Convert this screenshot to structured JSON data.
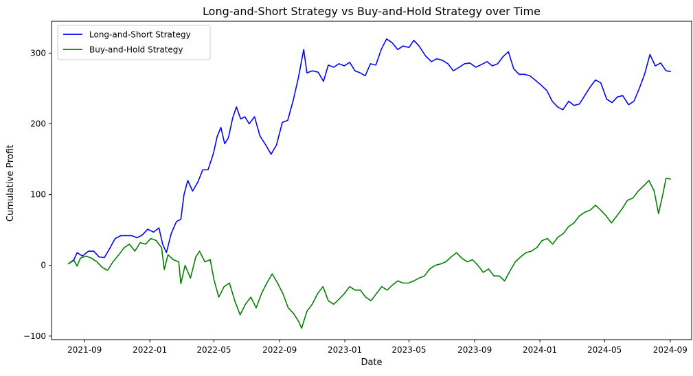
{
  "chart_data": {
    "type": "line",
    "title": "Long-and-Short Strategy vs Buy-and-Hold Strategy over Time",
    "xlabel": "Date",
    "ylabel": "Cumulative Profit",
    "xlim": [
      "2021-07-01",
      "2024-10-11"
    ],
    "ylim": [
      -105,
      345
    ],
    "x_ticks": [
      "2021-09",
      "2022-01",
      "2022-05",
      "2022-09",
      "2023-01",
      "2023-05",
      "2023-09",
      "2024-01",
      "2024-05",
      "2024-09"
    ],
    "y_ticks": [
      -100,
      0,
      100,
      200,
      300
    ],
    "grid": false,
    "legend_position": "upper left",
    "series": [
      {
        "name": "Long-and-Short Strategy",
        "color": "#0000ff",
        "points": [
          [
            "2021-08-01",
            2
          ],
          [
            "2021-08-12",
            8
          ],
          [
            "2021-08-18",
            18
          ],
          [
            "2021-08-28",
            13
          ],
          [
            "2021-09-08",
            20
          ],
          [
            "2021-09-18",
            20
          ],
          [
            "2021-09-28",
            12
          ],
          [
            "2021-10-08",
            11
          ],
          [
            "2021-10-18",
            24
          ],
          [
            "2021-10-28",
            38
          ],
          [
            "2021-11-08",
            42
          ],
          [
            "2021-11-18",
            42
          ],
          [
            "2021-11-28",
            42
          ],
          [
            "2021-12-08",
            39
          ],
          [
            "2021-12-18",
            43
          ],
          [
            "2021-12-28",
            51
          ],
          [
            "2022-01-08",
            47
          ],
          [
            "2022-01-18",
            53
          ],
          [
            "2022-01-25",
            30
          ],
          [
            "2022-02-01",
            18
          ],
          [
            "2022-02-10",
            45
          ],
          [
            "2022-02-20",
            62
          ],
          [
            "2022-02-28",
            65
          ],
          [
            "2022-03-06",
            100
          ],
          [
            "2022-03-13",
            120
          ],
          [
            "2022-03-22",
            105
          ],
          [
            "2022-04-01",
            118
          ],
          [
            "2022-04-10",
            135
          ],
          [
            "2022-04-20",
            135
          ],
          [
            "2022-04-30",
            158
          ],
          [
            "2022-05-07",
            182
          ],
          [
            "2022-05-14",
            195
          ],
          [
            "2022-05-21",
            172
          ],
          [
            "2022-05-28",
            180
          ],
          [
            "2022-06-05",
            208
          ],
          [
            "2022-06-12",
            224
          ],
          [
            "2022-06-20",
            207
          ],
          [
            "2022-06-28",
            210
          ],
          [
            "2022-07-06",
            200
          ],
          [
            "2022-07-16",
            210
          ],
          [
            "2022-07-26",
            183
          ],
          [
            "2022-08-06",
            170
          ],
          [
            "2022-08-16",
            157
          ],
          [
            "2022-08-26",
            170
          ],
          [
            "2022-09-06",
            202
          ],
          [
            "2022-09-16",
            205
          ],
          [
            "2022-09-26",
            232
          ],
          [
            "2022-10-06",
            265
          ],
          [
            "2022-10-16",
            305
          ],
          [
            "2022-10-22",
            272
          ],
          [
            "2022-11-01",
            275
          ],
          [
            "2022-11-12",
            273
          ],
          [
            "2022-11-22",
            260
          ],
          [
            "2022-12-01",
            283
          ],
          [
            "2022-12-11",
            280
          ],
          [
            "2022-12-21",
            285
          ],
          [
            "2022-12-31",
            282
          ],
          [
            "2023-01-10",
            287
          ],
          [
            "2023-01-20",
            275
          ],
          [
            "2023-01-30",
            272
          ],
          [
            "2023-02-08",
            268
          ],
          [
            "2023-02-18",
            285
          ],
          [
            "2023-02-28",
            283
          ],
          [
            "2023-03-10",
            305
          ],
          [
            "2023-03-20",
            320
          ],
          [
            "2023-03-30",
            315
          ],
          [
            "2023-04-10",
            305
          ],
          [
            "2023-04-20",
            310
          ],
          [
            "2023-05-01",
            308
          ],
          [
            "2023-05-10",
            318
          ],
          [
            "2023-05-20",
            310
          ],
          [
            "2023-06-01",
            296
          ],
          [
            "2023-06-12",
            288
          ],
          [
            "2023-06-22",
            292
          ],
          [
            "2023-07-02",
            290
          ],
          [
            "2023-07-13",
            285
          ],
          [
            "2023-07-23",
            275
          ],
          [
            "2023-08-03",
            280
          ],
          [
            "2023-08-13",
            285
          ],
          [
            "2023-08-23",
            286
          ],
          [
            "2023-09-03",
            280
          ],
          [
            "2023-09-14",
            284
          ],
          [
            "2023-09-24",
            288
          ],
          [
            "2023-10-04",
            282
          ],
          [
            "2023-10-14",
            285
          ],
          [
            "2023-10-24",
            295
          ],
          [
            "2023-11-03",
            302
          ],
          [
            "2023-11-13",
            278
          ],
          [
            "2023-11-23",
            270
          ],
          [
            "2023-12-03",
            270
          ],
          [
            "2023-12-13",
            268
          ],
          [
            "2023-12-23",
            262
          ],
          [
            "2024-01-03",
            255
          ],
          [
            "2024-01-14",
            247
          ],
          [
            "2024-01-24",
            232
          ],
          [
            "2024-02-03",
            224
          ],
          [
            "2024-02-13",
            220
          ],
          [
            "2024-02-24",
            232
          ],
          [
            "2024-03-05",
            226
          ],
          [
            "2024-03-15",
            228
          ],
          [
            "2024-03-25",
            240
          ],
          [
            "2024-04-04",
            252
          ],
          [
            "2024-04-14",
            262
          ],
          [
            "2024-04-24",
            258
          ],
          [
            "2024-05-05",
            235
          ],
          [
            "2024-05-15",
            230
          ],
          [
            "2024-05-25",
            238
          ],
          [
            "2024-06-04",
            240
          ],
          [
            "2024-06-15",
            227
          ],
          [
            "2024-06-25",
            232
          ],
          [
            "2024-07-05",
            250
          ],
          [
            "2024-07-15",
            270
          ],
          [
            "2024-07-25",
            298
          ],
          [
            "2024-08-04",
            282
          ],
          [
            "2024-08-14",
            286
          ],
          [
            "2024-08-24",
            275
          ],
          [
            "2024-09-02",
            274
          ]
        ]
      },
      {
        "name": "Buy-and-Hold Strategy",
        "color": "#008000",
        "points": [
          [
            "2021-08-01",
            2
          ],
          [
            "2021-08-12",
            7
          ],
          [
            "2021-08-18",
            -1
          ],
          [
            "2021-08-24",
            10
          ],
          [
            "2021-09-04",
            13
          ],
          [
            "2021-09-14",
            10
          ],
          [
            "2021-09-24",
            5
          ],
          [
            "2021-10-04",
            -3
          ],
          [
            "2021-10-14",
            -7
          ],
          [
            "2021-10-24",
            5
          ],
          [
            "2021-11-04",
            15
          ],
          [
            "2021-11-14",
            25
          ],
          [
            "2021-11-24",
            30
          ],
          [
            "2021-12-04",
            20
          ],
          [
            "2021-12-14",
            32
          ],
          [
            "2021-12-24",
            30
          ],
          [
            "2022-01-03",
            38
          ],
          [
            "2022-01-13",
            35
          ],
          [
            "2022-01-23",
            25
          ],
          [
            "2022-01-28",
            -6
          ],
          [
            "2022-02-04",
            15
          ],
          [
            "2022-02-14",
            8
          ],
          [
            "2022-02-24",
            5
          ],
          [
            "2022-02-28",
            -26
          ],
          [
            "2022-03-08",
            0
          ],
          [
            "2022-03-18",
            -18
          ],
          [
            "2022-03-28",
            12
          ],
          [
            "2022-04-04",
            20
          ],
          [
            "2022-04-14",
            5
          ],
          [
            "2022-04-24",
            8
          ],
          [
            "2022-05-01",
            -20
          ],
          [
            "2022-05-10",
            -45
          ],
          [
            "2022-05-20",
            -30
          ],
          [
            "2022-05-30",
            -25
          ],
          [
            "2022-06-09",
            -50
          ],
          [
            "2022-06-19",
            -70
          ],
          [
            "2022-06-29",
            -55
          ],
          [
            "2022-07-09",
            -45
          ],
          [
            "2022-07-19",
            -60
          ],
          [
            "2022-07-29",
            -40
          ],
          [
            "2022-08-08",
            -25
          ],
          [
            "2022-08-18",
            -12
          ],
          [
            "2022-08-28",
            -25
          ],
          [
            "2022-09-07",
            -40
          ],
          [
            "2022-09-17",
            -60
          ],
          [
            "2022-09-27",
            -68
          ],
          [
            "2022-10-07",
            -80
          ],
          [
            "2022-10-12",
            -89
          ],
          [
            "2022-10-22",
            -65
          ],
          [
            "2022-11-01",
            -55
          ],
          [
            "2022-11-11",
            -40
          ],
          [
            "2022-11-21",
            -30
          ],
          [
            "2022-12-01",
            -50
          ],
          [
            "2022-12-11",
            -55
          ],
          [
            "2022-12-21",
            -48
          ],
          [
            "2022-12-31",
            -40
          ],
          [
            "2023-01-10",
            -30
          ],
          [
            "2023-01-20",
            -35
          ],
          [
            "2023-01-30",
            -35
          ],
          [
            "2023-02-09",
            -45
          ],
          [
            "2023-02-19",
            -50
          ],
          [
            "2023-03-01",
            -40
          ],
          [
            "2023-03-11",
            -30
          ],
          [
            "2023-03-21",
            -35
          ],
          [
            "2023-03-31",
            -28
          ],
          [
            "2023-04-10",
            -22
          ],
          [
            "2023-04-20",
            -25
          ],
          [
            "2023-04-30",
            -25
          ],
          [
            "2023-05-10",
            -22
          ],
          [
            "2023-05-20",
            -18
          ],
          [
            "2023-05-30",
            -15
          ],
          [
            "2023-06-09",
            -5
          ],
          [
            "2023-06-19",
            0
          ],
          [
            "2023-06-29",
            2
          ],
          [
            "2023-07-09",
            5
          ],
          [
            "2023-07-19",
            12
          ],
          [
            "2023-07-29",
            18
          ],
          [
            "2023-08-08",
            10
          ],
          [
            "2023-08-18",
            5
          ],
          [
            "2023-08-28",
            8
          ],
          [
            "2023-09-07",
            0
          ],
          [
            "2023-09-17",
            -10
          ],
          [
            "2023-09-27",
            -5
          ],
          [
            "2023-10-07",
            -15
          ],
          [
            "2023-10-17",
            -15
          ],
          [
            "2023-10-27",
            -22
          ],
          [
            "2023-11-06",
            -8
          ],
          [
            "2023-11-16",
            5
          ],
          [
            "2023-11-26",
            12
          ],
          [
            "2023-12-06",
            18
          ],
          [
            "2023-12-16",
            20
          ],
          [
            "2023-12-26",
            25
          ],
          [
            "2024-01-05",
            35
          ],
          [
            "2024-01-15",
            38
          ],
          [
            "2024-01-25",
            30
          ],
          [
            "2024-02-04",
            40
          ],
          [
            "2024-02-14",
            45
          ],
          [
            "2024-02-24",
            55
          ],
          [
            "2024-03-05",
            60
          ],
          [
            "2024-03-15",
            70
          ],
          [
            "2024-03-25",
            75
          ],
          [
            "2024-04-04",
            78
          ],
          [
            "2024-04-14",
            85
          ],
          [
            "2024-04-24",
            78
          ],
          [
            "2024-05-04",
            70
          ],
          [
            "2024-05-14",
            60
          ],
          [
            "2024-05-24",
            70
          ],
          [
            "2024-06-03",
            80
          ],
          [
            "2024-06-13",
            92
          ],
          [
            "2024-06-23",
            95
          ],
          [
            "2024-07-03",
            105
          ],
          [
            "2024-07-13",
            112
          ],
          [
            "2024-07-23",
            120
          ],
          [
            "2024-08-02",
            105
          ],
          [
            "2024-08-10",
            73
          ],
          [
            "2024-08-18",
            100
          ],
          [
            "2024-08-24",
            123
          ],
          [
            "2024-09-02",
            122
          ]
        ]
      }
    ]
  }
}
